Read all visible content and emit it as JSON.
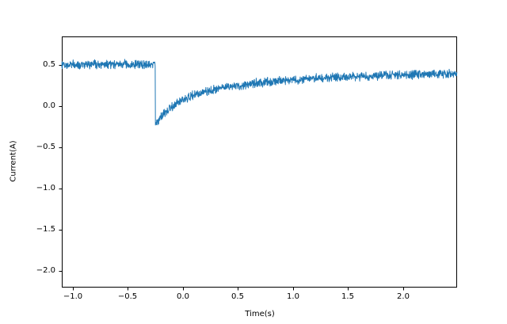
{
  "chart_data": {
    "type": "line",
    "title": "",
    "xlabel": "Time(s)",
    "ylabel": "Current(A)",
    "xlim": [
      -1.101,
      2.493
    ],
    "ylim": [
      -2.197,
      0.848
    ],
    "grid": false,
    "legend": "none",
    "x_ticks": [
      -1.0,
      -0.5,
      0.0,
      0.5,
      1.0,
      1.5,
      2.0
    ],
    "x_tick_labels": [
      "−1.0",
      "−0.5",
      "0.0",
      "0.5",
      "1.0",
      "1.5",
      "2.0"
    ],
    "y_ticks": [
      0.5,
      0.0,
      -0.5,
      -1.0,
      -1.5,
      -2.0
    ],
    "y_tick_labels": [
      "0.5",
      "0.0",
      "−0.5",
      "−1.0",
      "−1.5",
      "−2.0"
    ],
    "line_color": "#1f77b4",
    "axis_color": "#000000",
    "background_color": "#ffffff",
    "noise": {
      "amplitude": 0.062,
      "points": 1600,
      "seed": 12
    },
    "series": [
      {
        "name": "Current",
        "points": [
          [
            -1.101,
            0.51
          ],
          [
            -0.252,
            0.51
          ],
          [
            -0.25,
            -0.21
          ],
          [
            -0.225,
            -0.17
          ],
          [
            -0.2,
            -0.13
          ],
          [
            -0.15,
            -0.062
          ],
          [
            -0.1,
            -0.004
          ],
          [
            -0.05,
            0.043
          ],
          [
            0.0,
            0.08
          ],
          [
            0.05,
            0.111
          ],
          [
            0.1,
            0.137
          ],
          [
            0.15,
            0.16
          ],
          [
            0.2,
            0.178
          ],
          [
            0.25,
            0.195
          ],
          [
            0.3,
            0.208
          ],
          [
            0.4,
            0.234
          ],
          [
            0.5,
            0.255
          ],
          [
            0.6,
            0.272
          ],
          [
            0.7,
            0.288
          ],
          [
            0.8,
            0.301
          ],
          [
            0.9,
            0.313
          ],
          [
            1.0,
            0.323
          ],
          [
            1.2,
            0.34
          ],
          [
            1.4,
            0.354
          ],
          [
            1.6,
            0.366
          ],
          [
            1.8,
            0.375
          ],
          [
            2.0,
            0.384
          ],
          [
            2.2,
            0.39
          ],
          [
            2.493,
            0.398
          ]
        ]
      }
    ]
  }
}
